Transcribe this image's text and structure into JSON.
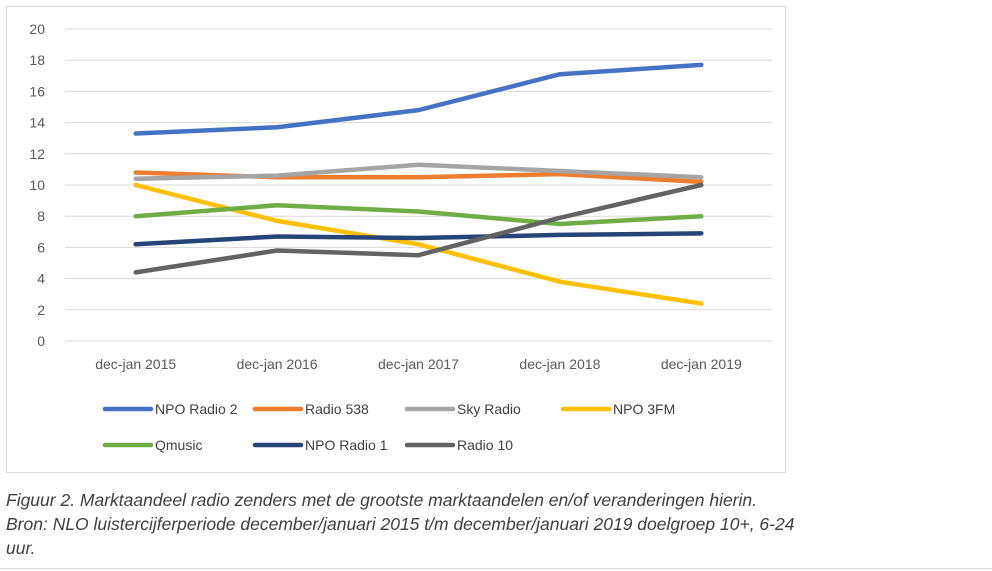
{
  "chart_data": {
    "type": "line",
    "title": "",
    "xlabel": "",
    "ylabel": "",
    "ylim": [
      0,
      20
    ],
    "yticks": [
      0,
      2,
      4,
      6,
      8,
      10,
      12,
      14,
      16,
      18,
      20
    ],
    "grid": true,
    "legend_position": "bottom",
    "categories": [
      "dec-jan 2015",
      "dec-jan 2016",
      "dec-jan 2017",
      "dec-jan 2018",
      "dec-jan 2019"
    ],
    "series": [
      {
        "name": "NPO Radio 2",
        "color": "#4472C4",
        "values": [
          13.3,
          13.7,
          14.8,
          17.1,
          17.7
        ]
      },
      {
        "name": "Radio 538",
        "color": "#ED7D31",
        "values": [
          10.8,
          10.5,
          10.5,
          10.7,
          10.2
        ]
      },
      {
        "name": "Sky Radio",
        "color": "#A5A5A5",
        "values": [
          10.4,
          10.6,
          11.3,
          10.9,
          10.5
        ]
      },
      {
        "name": "NPO 3FM",
        "color": "#FFC000",
        "values": [
          10.0,
          7.7,
          6.2,
          3.8,
          2.4
        ]
      },
      {
        "name": "Qmusic",
        "color": "#70AD47",
        "values": [
          8.0,
          8.7,
          8.3,
          7.5,
          8.0
        ]
      },
      {
        "name": "NPO Radio 1",
        "color": "#264478",
        "values": [
          6.2,
          6.7,
          6.6,
          6.8,
          6.9
        ]
      },
      {
        "name": "Radio 10",
        "color": "#636363",
        "values": [
          4.4,
          5.8,
          5.5,
          7.9,
          10.0
        ]
      }
    ]
  },
  "caption": {
    "line1": "Figuur 2. Marktaandeel radio zenders met de grootste marktaandelen en/of veranderingen hierin.",
    "line2": "Bron: NLO luistercijferperiode december/januari 2015 t/m december/januari 2019 doelgroep 10+, 6-24",
    "line3": "uur."
  }
}
